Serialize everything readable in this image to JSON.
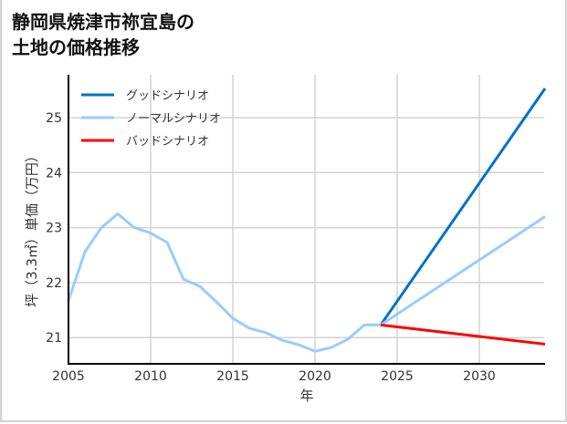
{
  "title_line1": "静岡県焼津市祢宜島の",
  "title_line2": "土地の価格推移",
  "chart_data": {
    "type": "line",
    "title": "静岡県焼津市祢宜島の土地の価格推移",
    "xlabel": "年",
    "ylabel": "坪（3.3㎡）単価（万円）",
    "xlim": [
      2005,
      2034
    ],
    "ylim": [
      20.55,
      26.0
    ],
    "xticks": [
      2005,
      2010,
      2015,
      2020,
      2025,
      2030
    ],
    "yticks": [
      21,
      22,
      23,
      24,
      25
    ],
    "grid": true,
    "legend_position": "upper left",
    "historical": {
      "x": [
        2005,
        2006,
        2007,
        2008,
        2009,
        2010,
        2011,
        2012,
        2013,
        2014,
        2015,
        2016,
        2017,
        2018,
        2019,
        2020,
        2021,
        2022,
        2023,
        2024
      ],
      "y": [
        21.67,
        22.56,
        23.0,
        23.25,
        23.0,
        22.9,
        22.73,
        22.06,
        21.93,
        21.65,
        21.35,
        21.17,
        21.09,
        20.95,
        20.87,
        20.75,
        20.82,
        20.97,
        21.23,
        21.23
      ]
    },
    "series": [
      {
        "name": "グッドシナリオ",
        "color": "#0072c6",
        "x": [
          2024,
          2034
        ],
        "y": [
          21.23,
          25.53
        ]
      },
      {
        "name": "ノーマルシナリオ",
        "color": "#99ccff",
        "x": [
          2024,
          2034
        ],
        "y": [
          21.23,
          23.2
        ]
      },
      {
        "name": "バッドシナリオ",
        "color": "#ff0000",
        "x": [
          2024,
          2034
        ],
        "y": [
          21.23,
          20.88
        ]
      }
    ]
  },
  "legend": {
    "good": "グッドシナリオ",
    "normal": "ノーマルシナリオ",
    "bad": "バッドシナリオ"
  },
  "axis": {
    "x_ticks": [
      "2005",
      "2010",
      "2015",
      "2020",
      "2025",
      "2030"
    ],
    "y_ticks": [
      "21",
      "22",
      "23",
      "24",
      "25"
    ],
    "xlabel": "年",
    "ylabel": "坪（3.3㎡）単価（万円）"
  }
}
